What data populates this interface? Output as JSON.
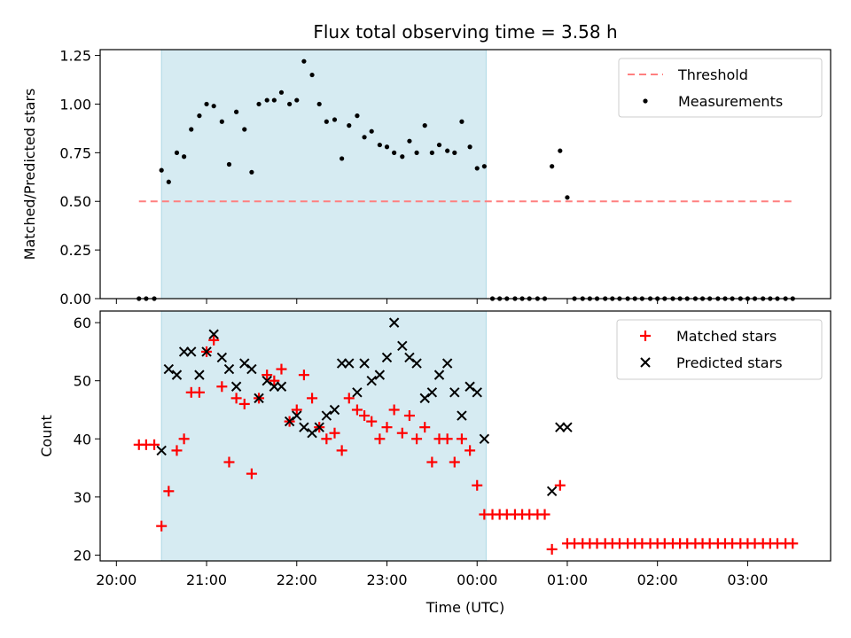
{
  "chart_data": {
    "type": "scatter",
    "title": "Flux total observing time = 3.58 h",
    "xlabel": "Time (UTC)",
    "x_unit": "hours since 20:00 UTC",
    "xlim": [
      -0.18,
      7.92
    ],
    "x_ticks": [
      {
        "label": "20:00",
        "x": 0
      },
      {
        "label": "21:00",
        "x": 1
      },
      {
        "label": "22:00",
        "x": 2
      },
      {
        "label": "23:00",
        "x": 3
      },
      {
        "label": "00:00",
        "x": 4
      },
      {
        "label": "01:00",
        "x": 5
      },
      {
        "label": "02:00",
        "x": 6
      },
      {
        "label": "03:00",
        "x": 7
      }
    ],
    "shaded_span": {
      "x0": 0.5,
      "x1": 4.1,
      "color": "#add8e6"
    },
    "colors": {
      "threshold": "#ff7f7f",
      "measurements": "#000000",
      "matched": "#ff0000",
      "predicted": "#000000",
      "span": "#add8e6"
    },
    "panels": [
      {
        "ylabel": "Matched/Predicted stars",
        "ylim": [
          0,
          1.28
        ],
        "y_ticks": [
          "0.00",
          "0.25",
          "0.50",
          "0.75",
          "1.00",
          "1.25"
        ],
        "legend_position": "upper right",
        "threshold": {
          "name": "Threshold",
          "y": 0.5,
          "x": [
            0.25,
            7.5
          ]
        },
        "series": [
          {
            "name": "Measurements",
            "marker": "dot",
            "points": [
              [
                0.25,
                0
              ],
              [
                0.33,
                0
              ],
              [
                0.42,
                0
              ],
              [
                0.5,
                0.66
              ],
              [
                0.58,
                0.6
              ],
              [
                0.67,
                0.75
              ],
              [
                0.75,
                0.73
              ],
              [
                0.83,
                0.87
              ],
              [
                0.92,
                0.94
              ],
              [
                1.0,
                1.0
              ],
              [
                1.08,
                0.99
              ],
              [
                1.17,
                0.91
              ],
              [
                1.25,
                0.69
              ],
              [
                1.33,
                0.96
              ],
              [
                1.42,
                0.87
              ],
              [
                1.5,
                0.65
              ],
              [
                1.58,
                1.0
              ],
              [
                1.67,
                1.02
              ],
              [
                1.75,
                1.02
              ],
              [
                1.83,
                1.06
              ],
              [
                1.92,
                1.0
              ],
              [
                2.0,
                1.02
              ],
              [
                2.08,
                1.22
              ],
              [
                2.17,
                1.15
              ],
              [
                2.25,
                1.0
              ],
              [
                2.33,
                0.91
              ],
              [
                2.42,
                0.92
              ],
              [
                2.5,
                0.72
              ],
              [
                2.58,
                0.89
              ],
              [
                2.67,
                0.94
              ],
              [
                2.75,
                0.83
              ],
              [
                2.83,
                0.86
              ],
              [
                2.92,
                0.79
              ],
              [
                3.0,
                0.78
              ],
              [
                3.08,
                0.75
              ],
              [
                3.17,
                0.73
              ],
              [
                3.25,
                0.81
              ],
              [
                3.33,
                0.75
              ],
              [
                3.42,
                0.89
              ],
              [
                3.5,
                0.75
              ],
              [
                3.58,
                0.79
              ],
              [
                3.67,
                0.76
              ],
              [
                3.75,
                0.75
              ],
              [
                3.83,
                0.91
              ],
              [
                3.92,
                0.78
              ],
              [
                4.0,
                0.67
              ],
              [
                4.08,
                0.68
              ],
              [
                4.17,
                0
              ],
              [
                4.25,
                0
              ],
              [
                4.33,
                0
              ],
              [
                4.42,
                0
              ],
              [
                4.5,
                0
              ],
              [
                4.58,
                0
              ],
              [
                4.67,
                0
              ],
              [
                4.75,
                0
              ],
              [
                4.83,
                0.68
              ],
              [
                4.92,
                0.76
              ],
              [
                5.0,
                0.52
              ],
              [
                5.08,
                0
              ],
              [
                5.17,
                0
              ],
              [
                5.25,
                0
              ],
              [
                5.33,
                0
              ],
              [
                5.42,
                0
              ],
              [
                5.5,
                0
              ],
              [
                5.58,
                0
              ],
              [
                5.67,
                0
              ],
              [
                5.75,
                0
              ],
              [
                5.83,
                0
              ],
              [
                5.92,
                0
              ],
              [
                6.0,
                0
              ],
              [
                6.08,
                0
              ],
              [
                6.17,
                0
              ],
              [
                6.25,
                0
              ],
              [
                6.33,
                0
              ],
              [
                6.42,
                0
              ],
              [
                6.5,
                0
              ],
              [
                6.58,
                0
              ],
              [
                6.67,
                0
              ],
              [
                6.75,
                0
              ],
              [
                6.83,
                0
              ],
              [
                6.92,
                0
              ],
              [
                7.0,
                0
              ],
              [
                7.08,
                0
              ],
              [
                7.17,
                0
              ],
              [
                7.25,
                0
              ],
              [
                7.33,
                0
              ],
              [
                7.42,
                0
              ],
              [
                7.5,
                0
              ]
            ]
          }
        ]
      },
      {
        "ylabel": "Count",
        "ylim": [
          19,
          62
        ],
        "y_ticks": [
          "20",
          "30",
          "40",
          "50",
          "60"
        ],
        "legend_position": "upper right",
        "series": [
          {
            "name": "Matched stars",
            "marker": "plus",
            "color": "#ff0000",
            "points": [
              [
                0.25,
                39
              ],
              [
                0.33,
                39
              ],
              [
                0.42,
                39
              ],
              [
                0.5,
                25
              ],
              [
                0.58,
                31
              ],
              [
                0.67,
                38
              ],
              [
                0.75,
                40
              ],
              [
                0.83,
                48
              ],
              [
                0.92,
                48
              ],
              [
                1.0,
                55
              ],
              [
                1.08,
                57
              ],
              [
                1.17,
                49
              ],
              [
                1.25,
                36
              ],
              [
                1.33,
                47
              ],
              [
                1.42,
                46
              ],
              [
                1.5,
                34
              ],
              [
                1.58,
                47
              ],
              [
                1.67,
                51
              ],
              [
                1.75,
                50
              ],
              [
                1.83,
                52
              ],
              [
                1.92,
                43
              ],
              [
                2.0,
                45
              ],
              [
                2.08,
                51
              ],
              [
                2.17,
                47
              ],
              [
                2.25,
                42
              ],
              [
                2.33,
                40
              ],
              [
                2.42,
                41
              ],
              [
                2.5,
                38
              ],
              [
                2.58,
                47
              ],
              [
                2.67,
                45
              ],
              [
                2.75,
                44
              ],
              [
                2.83,
                43
              ],
              [
                2.92,
                40
              ],
              [
                3.0,
                42
              ],
              [
                3.08,
                45
              ],
              [
                3.17,
                41
              ],
              [
                3.25,
                44
              ],
              [
                3.33,
                40
              ],
              [
                3.42,
                42
              ],
              [
                3.5,
                36
              ],
              [
                3.58,
                40
              ],
              [
                3.67,
                40
              ],
              [
                3.75,
                36
              ],
              [
                3.83,
                40
              ],
              [
                3.92,
                38
              ],
              [
                4.0,
                32
              ],
              [
                4.08,
                27
              ],
              [
                4.17,
                27
              ],
              [
                4.25,
                27
              ],
              [
                4.33,
                27
              ],
              [
                4.42,
                27
              ],
              [
                4.5,
                27
              ],
              [
                4.58,
                27
              ],
              [
                4.67,
                27
              ],
              [
                4.75,
                27
              ],
              [
                4.83,
                21
              ],
              [
                4.92,
                32
              ],
              [
                5.0,
                22
              ],
              [
                5.08,
                22
              ],
              [
                5.17,
                22
              ],
              [
                5.25,
                22
              ],
              [
                5.33,
                22
              ],
              [
                5.42,
                22
              ],
              [
                5.5,
                22
              ],
              [
                5.58,
                22
              ],
              [
                5.67,
                22
              ],
              [
                5.75,
                22
              ],
              [
                5.83,
                22
              ],
              [
                5.92,
                22
              ],
              [
                6.0,
                22
              ],
              [
                6.08,
                22
              ],
              [
                6.17,
                22
              ],
              [
                6.25,
                22
              ],
              [
                6.33,
                22
              ],
              [
                6.42,
                22
              ],
              [
                6.5,
                22
              ],
              [
                6.58,
                22
              ],
              [
                6.67,
                22
              ],
              [
                6.75,
                22
              ],
              [
                6.83,
                22
              ],
              [
                6.92,
                22
              ],
              [
                7.0,
                22
              ],
              [
                7.08,
                22
              ],
              [
                7.17,
                22
              ],
              [
                7.25,
                22
              ],
              [
                7.33,
                22
              ],
              [
                7.42,
                22
              ],
              [
                7.5,
                22
              ]
            ]
          },
          {
            "name": "Predicted stars",
            "marker": "x",
            "color": "#000000",
            "points": [
              [
                0.5,
                38
              ],
              [
                0.58,
                52
              ],
              [
                0.67,
                51
              ],
              [
                0.75,
                55
              ],
              [
                0.83,
                55
              ],
              [
                0.92,
                51
              ],
              [
                1.0,
                55
              ],
              [
                1.08,
                58
              ],
              [
                1.17,
                54
              ],
              [
                1.25,
                52
              ],
              [
                1.33,
                49
              ],
              [
                1.42,
                53
              ],
              [
                1.5,
                52
              ],
              [
                1.58,
                47
              ],
              [
                1.67,
                50
              ],
              [
                1.75,
                49
              ],
              [
                1.83,
                49
              ],
              [
                1.92,
                43
              ],
              [
                2.0,
                44
              ],
              [
                2.08,
                42
              ],
              [
                2.17,
                41
              ],
              [
                2.25,
                42
              ],
              [
                2.33,
                44
              ],
              [
                2.42,
                45
              ],
              [
                2.5,
                53
              ],
              [
                2.58,
                53
              ],
              [
                2.67,
                48
              ],
              [
                2.75,
                53
              ],
              [
                2.83,
                50
              ],
              [
                2.92,
                51
              ],
              [
                3.0,
                54
              ],
              [
                3.08,
                60
              ],
              [
                3.17,
                56
              ],
              [
                3.25,
                54
              ],
              [
                3.33,
                53
              ],
              [
                3.42,
                47
              ],
              [
                3.5,
                48
              ],
              [
                3.58,
                51
              ],
              [
                3.67,
                53
              ],
              [
                3.75,
                48
              ],
              [
                3.83,
                44
              ],
              [
                3.92,
                49
              ],
              [
                4.0,
                48
              ],
              [
                4.08,
                40
              ],
              [
                4.83,
                31
              ],
              [
                4.92,
                42
              ],
              [
                5.0,
                42
              ]
            ]
          }
        ]
      }
    ]
  }
}
